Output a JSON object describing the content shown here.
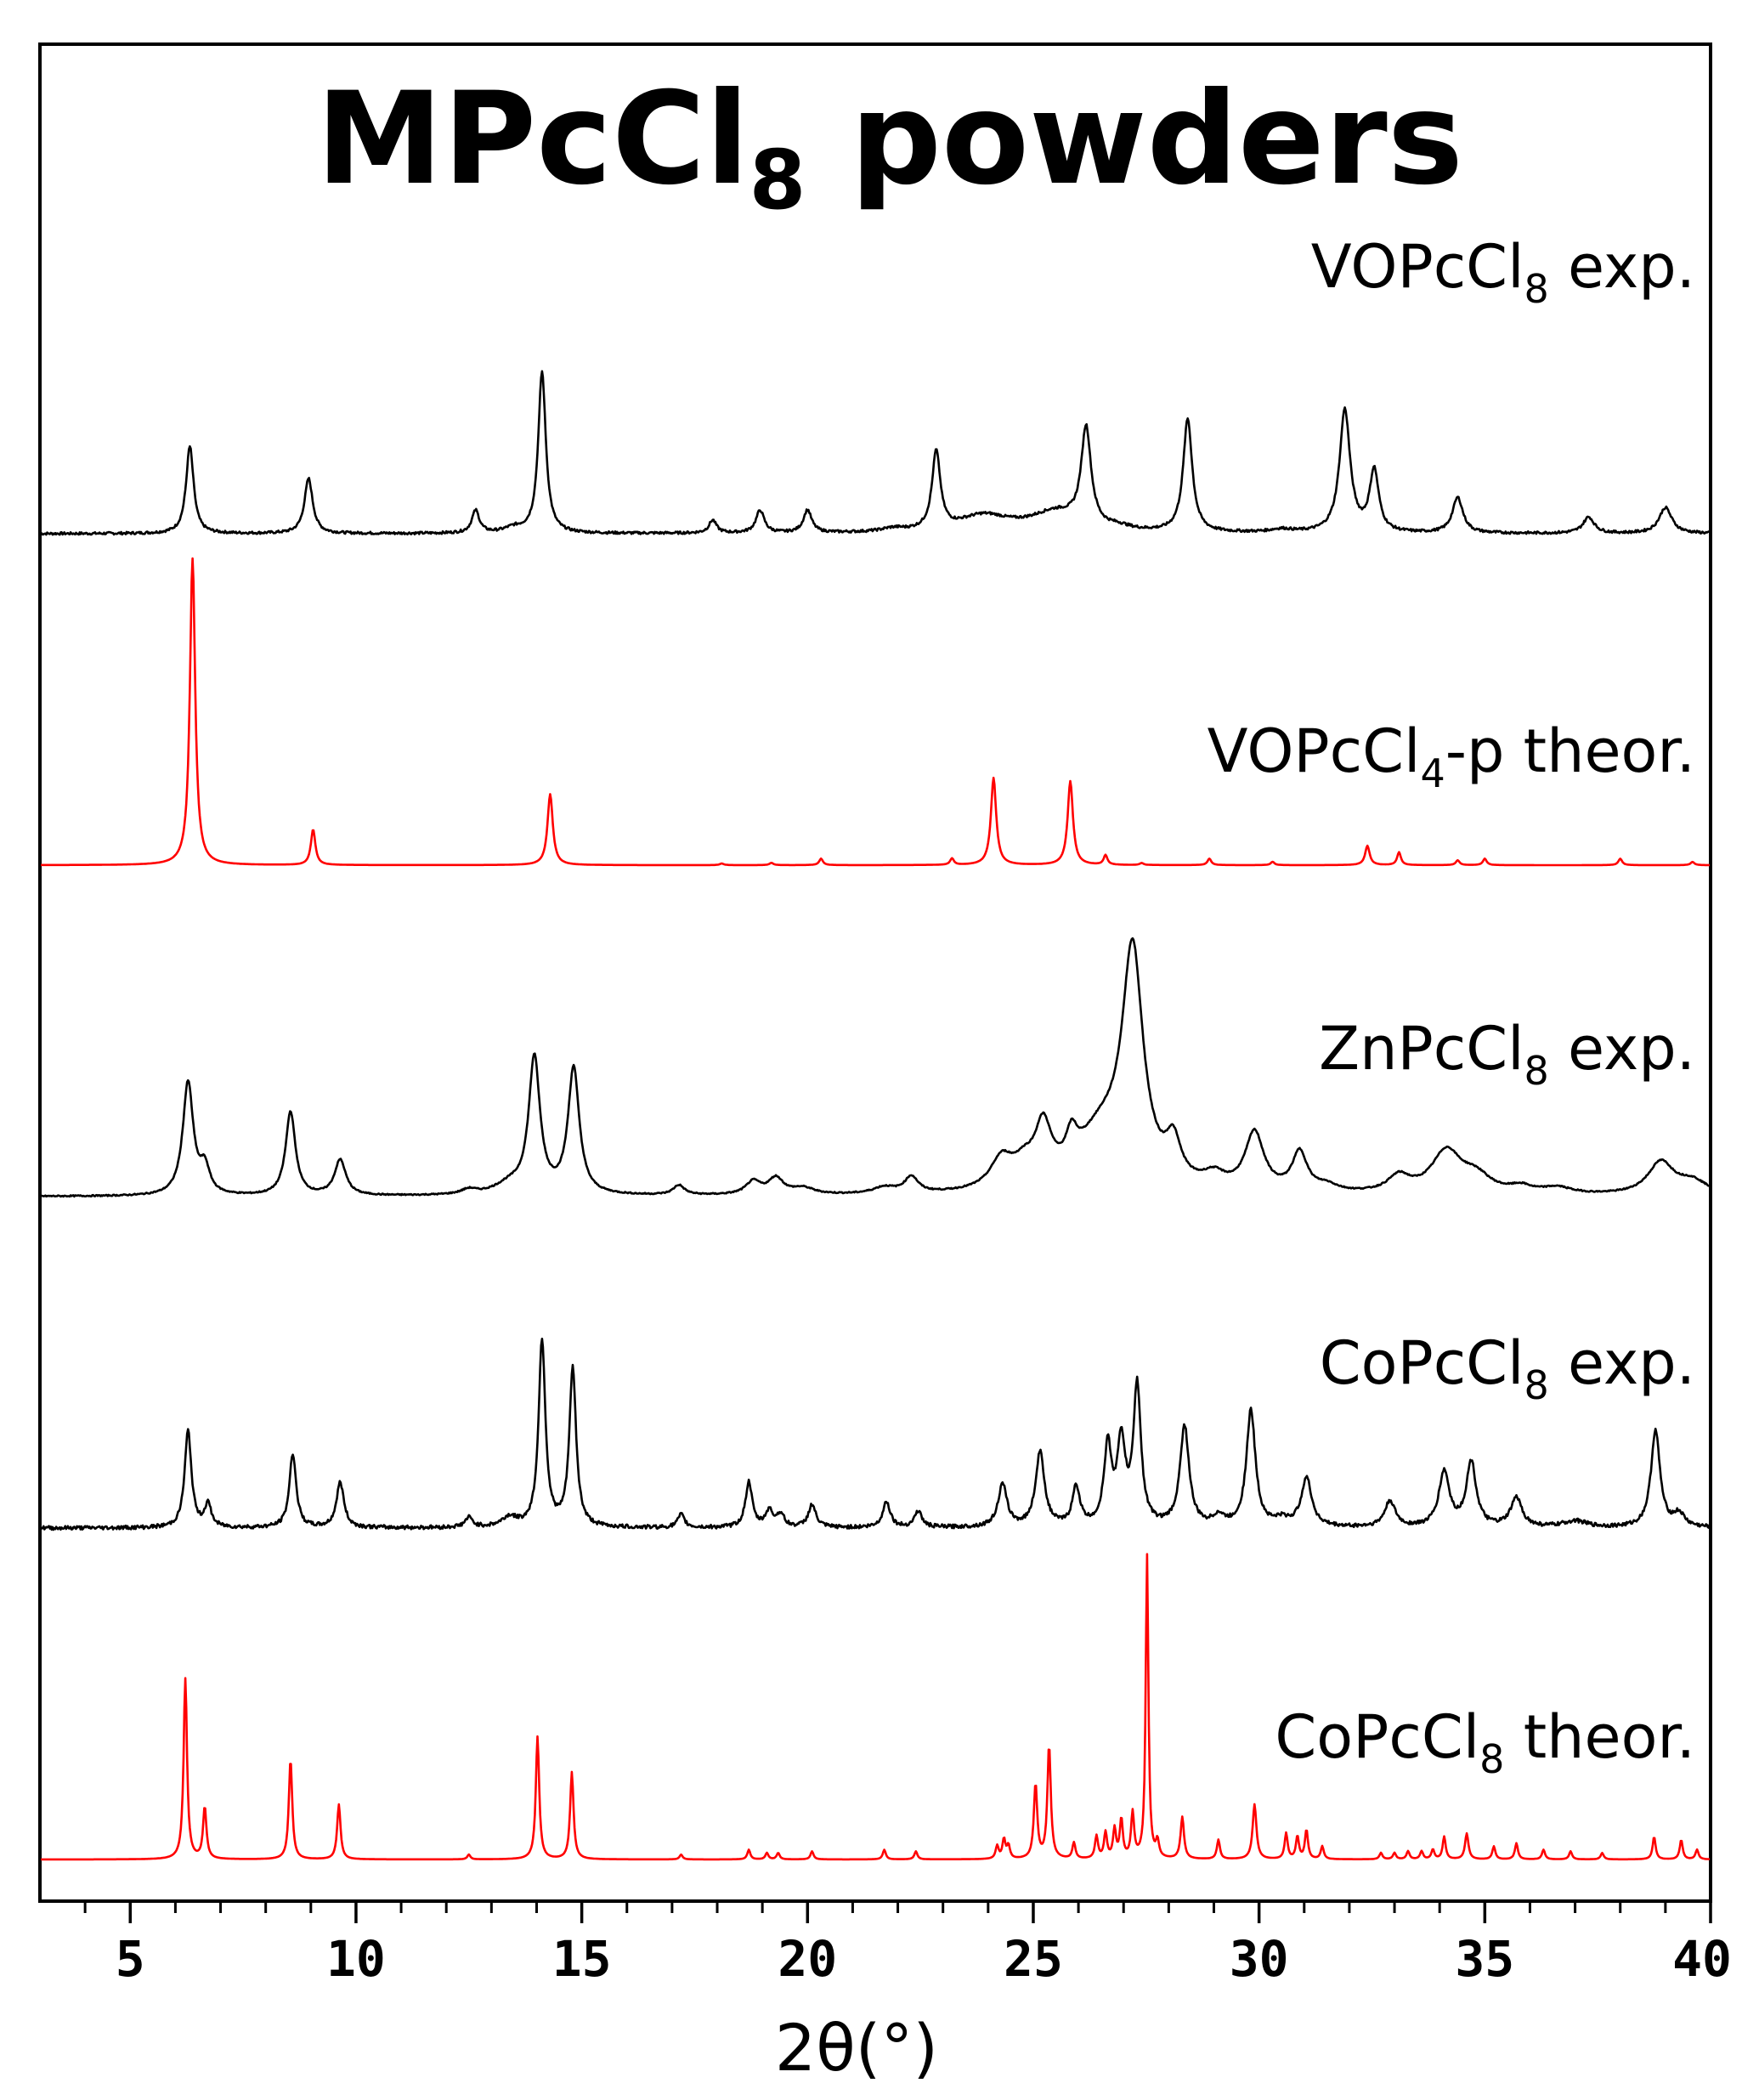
{
  "chart_data": {
    "type": "line",
    "title": {
      "main": "MPcCl",
      "subscript": "8",
      "suffix": " powders"
    },
    "xlabel": "2θ(°)",
    "ylabel": "",
    "xlim": [
      3,
      40
    ],
    "x_ticks": [
      5,
      10,
      15,
      20,
      25,
      30,
      35,
      40
    ],
    "x_tick_labels": [
      "5",
      "10",
      "15",
      "20",
      "25",
      "30",
      "35",
      "40"
    ],
    "grid": false,
    "colors": {
      "exp": "#000000",
      "theor": "#ff0000"
    },
    "series": [
      {
        "name": "VOPcCl8 exp.",
        "label_parts": [
          "VOPcCl",
          "8",
          " exp."
        ],
        "color": "#000000",
        "offset": 4,
        "baseline_noise": 0.004,
        "peaks": [
          [
            6.32,
            0.27,
            0.1
          ],
          [
            8.95,
            0.17,
            0.11
          ],
          [
            12.65,
            0.07,
            0.1
          ],
          [
            13.5,
            0.015,
            0.25
          ],
          [
            14.12,
            0.5,
            0.1
          ],
          [
            17.9,
            0.04,
            0.1
          ],
          [
            18.95,
            0.07,
            0.11
          ],
          [
            20.0,
            0.07,
            0.11
          ],
          [
            21.9,
            0.01,
            0.3
          ],
          [
            22.85,
            0.24,
            0.11
          ],
          [
            23.9,
            0.05,
            0.7
          ],
          [
            25.5,
            0.06,
            0.7
          ],
          [
            26.17,
            0.3,
            0.13
          ],
          [
            26.9,
            0.01,
            0.3
          ],
          [
            28.42,
            0.35,
            0.12
          ],
          [
            30.5,
            0.01,
            0.3
          ],
          [
            31.9,
            0.38,
            0.14
          ],
          [
            32.55,
            0.19,
            0.12
          ],
          [
            34.4,
            0.11,
            0.14
          ],
          [
            37.3,
            0.05,
            0.15
          ],
          [
            39.0,
            0.08,
            0.17
          ]
        ]
      },
      {
        "name": "VOPcCl4-p theor.",
        "label_parts": [
          "VOPcCl",
          "4",
          "-p theor."
        ],
        "color": "#ff0000",
        "offset": 3,
        "baseline_noise": 0.0,
        "peaks": [
          [
            6.38,
            0.95,
            0.07
          ],
          [
            9.05,
            0.11,
            0.06
          ],
          [
            14.3,
            0.22,
            0.07
          ],
          [
            18.1,
            0.005,
            0.05
          ],
          [
            19.2,
            0.007,
            0.05
          ],
          [
            20.3,
            0.02,
            0.05
          ],
          [
            23.2,
            0.02,
            0.05
          ],
          [
            24.12,
            0.27,
            0.07
          ],
          [
            25.82,
            0.26,
            0.07
          ],
          [
            26.6,
            0.03,
            0.05
          ],
          [
            27.4,
            0.006,
            0.05
          ],
          [
            28.9,
            0.02,
            0.05
          ],
          [
            30.3,
            0.01,
            0.05
          ],
          [
            32.4,
            0.06,
            0.06
          ],
          [
            33.1,
            0.04,
            0.05
          ],
          [
            34.4,
            0.015,
            0.05
          ],
          [
            35.0,
            0.02,
            0.05
          ],
          [
            38.0,
            0.02,
            0.05
          ],
          [
            39.6,
            0.01,
            0.05
          ]
        ]
      },
      {
        "name": "ZnPcCl8 exp.",
        "label_parts": [
          "ZnPcCl",
          "8",
          " exp."
        ],
        "color": "#000000",
        "offset": 2,
        "baseline_noise": 0.002,
        "peaks": [
          [
            6.28,
            0.35,
            0.14
          ],
          [
            6.65,
            0.08,
            0.13
          ],
          [
            8.55,
            0.26,
            0.13
          ],
          [
            9.65,
            0.11,
            0.15
          ],
          [
            12.5,
            0.015,
            0.2
          ],
          [
            13.4,
            0.03,
            0.4
          ],
          [
            13.95,
            0.42,
            0.15
          ],
          [
            14.82,
            0.39,
            0.15
          ],
          [
            17.15,
            0.03,
            0.15
          ],
          [
            18.8,
            0.04,
            0.2
          ],
          [
            19.3,
            0.05,
            0.2
          ],
          [
            19.9,
            0.02,
            0.3
          ],
          [
            21.7,
            0.02,
            0.3
          ],
          [
            22.3,
            0.05,
            0.18
          ],
          [
            24.3,
            0.09,
            0.3
          ],
          [
            24.8,
            0.06,
            0.3
          ],
          [
            25.22,
            0.17,
            0.22
          ],
          [
            25.85,
            0.09,
            0.15
          ],
          [
            26.5,
            0.17,
            0.7
          ],
          [
            27.2,
            0.7,
            0.28
          ],
          [
            28.1,
            0.12,
            0.2
          ],
          [
            29.0,
            0.04,
            0.3
          ],
          [
            29.9,
            0.18,
            0.25
          ],
          [
            30.9,
            0.12,
            0.2
          ],
          [
            31.5,
            0.02,
            0.3
          ],
          [
            33.1,
            0.05,
            0.3
          ],
          [
            34.15,
            0.13,
            0.4
          ],
          [
            34.8,
            0.05,
            0.4
          ],
          [
            35.8,
            0.02,
            0.3
          ],
          [
            36.6,
            0.02,
            0.4
          ],
          [
            38.9,
            0.1,
            0.35
          ],
          [
            39.6,
            0.04,
            0.4
          ]
        ]
      },
      {
        "name": "CoPcCl8 exp.",
        "label_parts": [
          "CoPcCl",
          "8",
          " exp."
        ],
        "color": "#000000",
        "offset": 1,
        "baseline_noise": 0.006,
        "peaks": [
          [
            6.28,
            0.3,
            0.09
          ],
          [
            6.72,
            0.07,
            0.09
          ],
          [
            8.6,
            0.23,
            0.09
          ],
          [
            9.65,
            0.14,
            0.1
          ],
          [
            12.5,
            0.03,
            0.1
          ],
          [
            13.4,
            0.03,
            0.2
          ],
          [
            14.12,
            0.58,
            0.09
          ],
          [
            14.8,
            0.49,
            0.09
          ],
          [
            17.2,
            0.04,
            0.09
          ],
          [
            18.7,
            0.14,
            0.09
          ],
          [
            19.15,
            0.05,
            0.1
          ],
          [
            19.4,
            0.04,
            0.1
          ],
          [
            20.1,
            0.07,
            0.1
          ],
          [
            21.75,
            0.08,
            0.1
          ],
          [
            22.45,
            0.05,
            0.1
          ],
          [
            24.32,
            0.13,
            0.12
          ],
          [
            25.15,
            0.23,
            0.12
          ],
          [
            25.95,
            0.12,
            0.1
          ],
          [
            26.65,
            0.24,
            0.1
          ],
          [
            26.95,
            0.25,
            0.11
          ],
          [
            27.3,
            0.43,
            0.1
          ],
          [
            28.35,
            0.31,
            0.12
          ],
          [
            29.1,
            0.03,
            0.15
          ],
          [
            29.82,
            0.36,
            0.12
          ],
          [
            30.5,
            0.02,
            0.2
          ],
          [
            31.05,
            0.15,
            0.14
          ],
          [
            32.9,
            0.08,
            0.14
          ],
          [
            34.1,
            0.17,
            0.14
          ],
          [
            34.7,
            0.2,
            0.13
          ],
          [
            35.7,
            0.09,
            0.15
          ],
          [
            37.0,
            0.02,
            0.3
          ],
          [
            38.78,
            0.3,
            0.12
          ],
          [
            39.3,
            0.04,
            0.15
          ]
        ]
      },
      {
        "name": "CoPcCl8 theor.",
        "label_parts": [
          "CoPcCl",
          "8",
          " theor."
        ],
        "color": "#ff0000",
        "offset": 0,
        "baseline_noise": 0.0,
        "peaks": [
          [
            6.22,
            0.56,
            0.045
          ],
          [
            6.65,
            0.16,
            0.045
          ],
          [
            8.55,
            0.31,
            0.045
          ],
          [
            9.62,
            0.17,
            0.045
          ],
          [
            12.5,
            0.015,
            0.04
          ],
          [
            14.02,
            0.38,
            0.045
          ],
          [
            14.78,
            0.27,
            0.045
          ],
          [
            17.2,
            0.015,
            0.04
          ],
          [
            18.7,
            0.03,
            0.04
          ],
          [
            19.1,
            0.02,
            0.04
          ],
          [
            19.35,
            0.02,
            0.04
          ],
          [
            20.1,
            0.025,
            0.04
          ],
          [
            21.7,
            0.03,
            0.04
          ],
          [
            22.4,
            0.025,
            0.04
          ],
          [
            24.2,
            0.04,
            0.04
          ],
          [
            24.35,
            0.06,
            0.04
          ],
          [
            24.45,
            0.04,
            0.04
          ],
          [
            25.05,
            0.23,
            0.045
          ],
          [
            25.35,
            0.35,
            0.045
          ],
          [
            25.9,
            0.05,
            0.04
          ],
          [
            26.4,
            0.07,
            0.04
          ],
          [
            26.6,
            0.08,
            0.04
          ],
          [
            26.8,
            0.09,
            0.04
          ],
          [
            26.95,
            0.12,
            0.04
          ],
          [
            27.2,
            0.14,
            0.04
          ],
          [
            27.52,
            0.94,
            0.035
          ],
          [
            27.75,
            0.05,
            0.04
          ],
          [
            28.3,
            0.13,
            0.045
          ],
          [
            29.1,
            0.06,
            0.04
          ],
          [
            29.9,
            0.17,
            0.05
          ],
          [
            30.6,
            0.08,
            0.04
          ],
          [
            30.85,
            0.07,
            0.04
          ],
          [
            31.05,
            0.09,
            0.04
          ],
          [
            31.4,
            0.04,
            0.04
          ],
          [
            32.7,
            0.02,
            0.04
          ],
          [
            33.0,
            0.02,
            0.04
          ],
          [
            33.3,
            0.025,
            0.04
          ],
          [
            33.6,
            0.025,
            0.04
          ],
          [
            33.85,
            0.03,
            0.04
          ],
          [
            34.1,
            0.07,
            0.04
          ],
          [
            34.6,
            0.08,
            0.045
          ],
          [
            35.2,
            0.04,
            0.04
          ],
          [
            35.7,
            0.05,
            0.04
          ],
          [
            36.3,
            0.03,
            0.04
          ],
          [
            36.9,
            0.025,
            0.04
          ],
          [
            37.6,
            0.02,
            0.04
          ],
          [
            38.75,
            0.07,
            0.04
          ],
          [
            39.35,
            0.06,
            0.04
          ],
          [
            39.7,
            0.03,
            0.04
          ]
        ]
      }
    ]
  }
}
